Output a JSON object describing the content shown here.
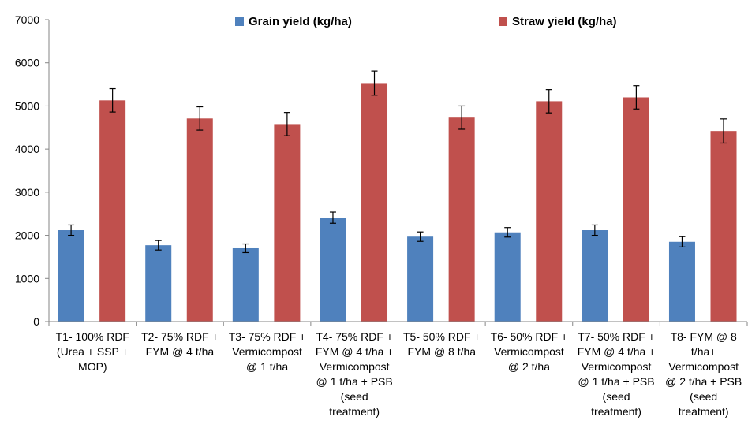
{
  "chart_data": {
    "type": "bar",
    "categories": [
      [
        "T1- 100% RDF",
        "(Urea + SSP +",
        "MOP)"
      ],
      [
        "T2- 75% RDF +",
        "FYM @ 4 t/ha"
      ],
      [
        "T3- 75% RDF +",
        "Vermicompost",
        "@ 1 t/ha"
      ],
      [
        "T4- 75% RDF +",
        "FYM @ 4 t/ha +",
        "Vermicompost",
        "@ 1 t/ha + PSB",
        "(seed",
        "treatment)"
      ],
      [
        "T5- 50% RDF +",
        "FYM @ 8 t/ha"
      ],
      [
        "T6- 50% RDF +",
        "Vermicompost",
        "@ 2 t/ha"
      ],
      [
        "T7- 50% RDF +",
        "FYM @ 4 t/ha +",
        "Vermicompost",
        "@ 1 t/ha + PSB",
        "(seed",
        "treatment)"
      ],
      [
        "T8- FYM @ 8",
        "t/ha+",
        "Vermicompost",
        "@ 2 t/ha + PSB",
        "(seed",
        "treatment)"
      ]
    ],
    "series": [
      {
        "name": "Grain yield (kg/ha)",
        "color": "#4F81BD",
        "values": [
          2120,
          1770,
          1700,
          2410,
          1970,
          2070,
          2120,
          1850
        ],
        "errors": [
          120,
          110,
          100,
          130,
          110,
          110,
          120,
          120
        ]
      },
      {
        "name": "Straw yield (kg/ha)",
        "color": "#C0504D",
        "values": [
          5130,
          4710,
          4580,
          5530,
          4730,
          5110,
          5200,
          4420
        ],
        "errors": [
          270,
          270,
          270,
          280,
          270,
          270,
          270,
          280
        ]
      }
    ],
    "ylim": [
      0,
      7000
    ],
    "yticks": [
      0,
      1000,
      2000,
      3000,
      4000,
      5000,
      6000,
      7000
    ],
    "grid": false,
    "legend_position": "top"
  }
}
